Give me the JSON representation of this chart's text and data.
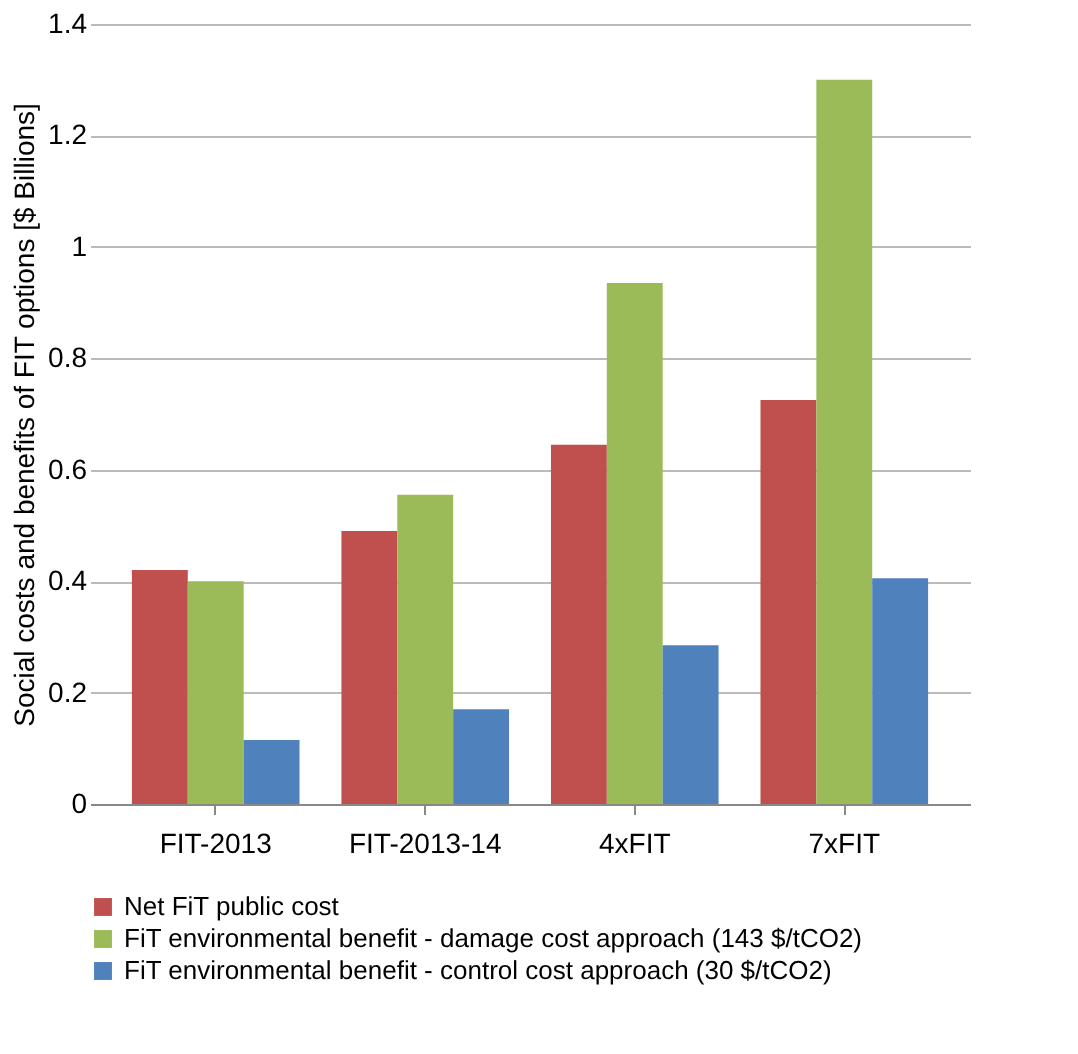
{
  "chart_data": {
    "type": "bar",
    "ylabel": "Social costs and benefits of FIT options [$ Billions]",
    "categories": [
      "FIT-2013",
      "FIT-2013-14",
      "4xFIT",
      "7xFIT"
    ],
    "series": [
      {
        "name": "Net FiT public cost",
        "color": "#c0504d",
        "values": [
          0.42,
          0.49,
          0.645,
          0.725
        ]
      },
      {
        "name": "FiT environmental benefit - damage cost approach (143 $/tCO2)",
        "color": "#9bbb59",
        "values": [
          0.4,
          0.555,
          0.935,
          1.3
        ]
      },
      {
        "name": "FiT environmental benefit - control cost approach (30 $/tCO2)",
        "color": "#4f81bd",
        "values": [
          0.115,
          0.17,
          0.285,
          0.405
        ]
      }
    ],
    "ylim": [
      0,
      1.4
    ],
    "yticks": [
      0,
      0.2,
      0.4,
      0.6,
      0.8,
      1,
      1.2,
      1.4
    ],
    "grid": "y",
    "legend": "bottom left"
  }
}
